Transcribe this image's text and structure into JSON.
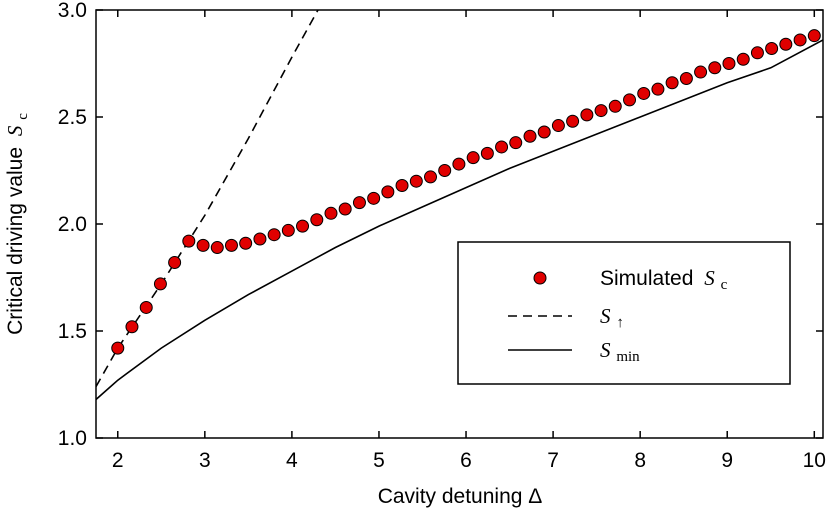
{
  "chart_data": {
    "type": "scatter",
    "xlabel": "Cavity detuning Δ",
    "ylabel_text": "Critical driving value",
    "ylabel_symbol": "S",
    "ylabel_subscript": "c",
    "xlim": [
      1.75,
      10.1
    ],
    "ylim": [
      1.0,
      3.0
    ],
    "x_ticks": [
      2,
      3,
      4,
      5,
      6,
      7,
      8,
      9,
      10
    ],
    "y_ticks": [
      1.0,
      1.5,
      2.0,
      2.5,
      3.0
    ],
    "x_tick_labels": [
      "2",
      "3",
      "4",
      "5",
      "6",
      "7",
      "8",
      "9",
      "10"
    ],
    "y_tick_labels": [
      "1.0",
      "1.5",
      "2.0",
      "2.5",
      "3.0"
    ],
    "grid": false,
    "legend_position": "lower-right",
    "series": [
      {
        "name": "Simulated S_c",
        "label_text": "Simulated",
        "label_symbol": "S",
        "label_subscript": "c",
        "style": "markers",
        "marker_color": "#e00000",
        "x": [
          2.0,
          2.163,
          2.327,
          2.49,
          2.653,
          2.816,
          2.98,
          3.143,
          3.306,
          3.469,
          3.633,
          3.796,
          3.959,
          4.122,
          4.286,
          4.449,
          4.612,
          4.776,
          4.939,
          5.102,
          5.265,
          5.429,
          5.592,
          5.755,
          5.918,
          6.082,
          6.245,
          6.408,
          6.571,
          6.735,
          6.898,
          7.061,
          7.224,
          7.388,
          7.551,
          7.714,
          7.878,
          8.041,
          8.204,
          8.367,
          8.531,
          8.694,
          8.857,
          9.02,
          9.184,
          9.347,
          9.51,
          9.673,
          9.837,
          10.0
        ],
        "y": [
          1.42,
          1.52,
          1.61,
          1.72,
          1.82,
          1.92,
          1.9,
          1.89,
          1.9,
          1.91,
          1.93,
          1.95,
          1.97,
          1.99,
          2.02,
          2.05,
          2.07,
          2.1,
          2.12,
          2.15,
          2.18,
          2.2,
          2.22,
          2.25,
          2.28,
          2.31,
          2.33,
          2.36,
          2.38,
          2.41,
          2.43,
          2.46,
          2.48,
          2.51,
          2.53,
          2.55,
          2.58,
          2.61,
          2.63,
          2.66,
          2.68,
          2.71,
          2.73,
          2.75,
          2.77,
          2.8,
          2.82,
          2.84,
          2.86,
          2.88
        ]
      },
      {
        "name": "S_↑",
        "label_symbol": "S",
        "label_subscript": "↑",
        "style": "dashed",
        "color": "#000000",
        "x": [
          1.75,
          2.0,
          2.5,
          3.0,
          3.5,
          4.0,
          4.3
        ],
        "y": [
          1.24,
          1.42,
          1.72,
          2.04,
          2.4,
          2.78,
          3.0
        ]
      },
      {
        "name": "S_min",
        "label_symbol": "S",
        "label_subscript": "min",
        "style": "solid",
        "color": "#000000",
        "x": [
          1.75,
          2.0,
          2.5,
          3.0,
          3.5,
          4.0,
          4.5,
          5.0,
          5.5,
          6.0,
          6.5,
          7.0,
          7.5,
          8.0,
          8.5,
          9.0,
          9.5,
          10.1
        ],
        "y": [
          1.18,
          1.27,
          1.42,
          1.55,
          1.67,
          1.78,
          1.89,
          1.99,
          2.08,
          2.17,
          2.26,
          2.34,
          2.42,
          2.5,
          2.58,
          2.66,
          2.73,
          2.86
        ]
      }
    ]
  }
}
